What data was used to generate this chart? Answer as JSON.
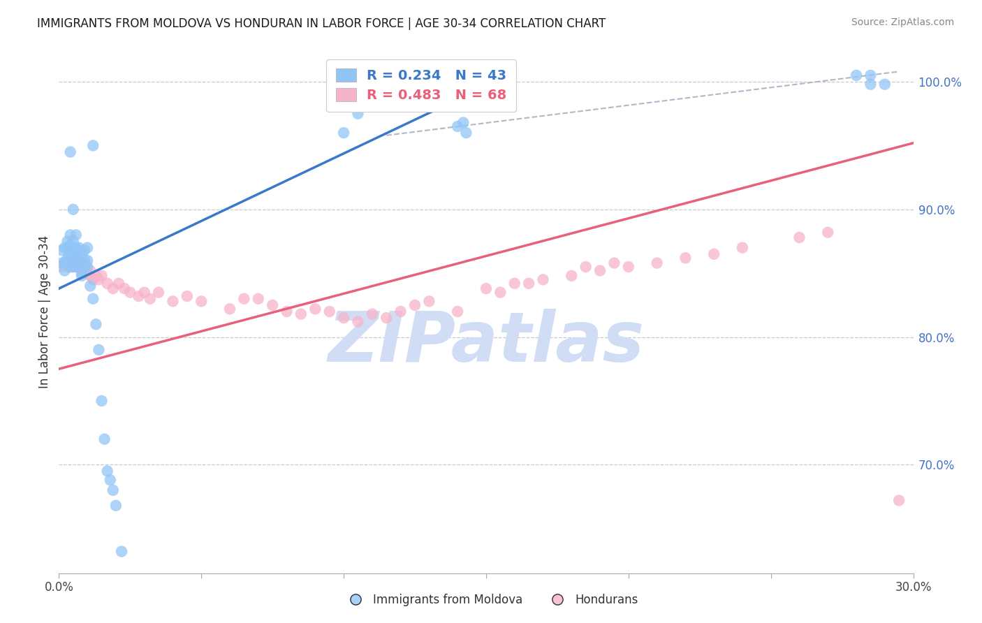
{
  "title": "IMMIGRANTS FROM MOLDOVA VS HONDURAN IN LABOR FORCE | AGE 30-34 CORRELATION CHART",
  "source_text": "Source: ZipAtlas.com",
  "ylabel": "In Labor Force | Age 30-34",
  "xlim": [
    0.0,
    0.3
  ],
  "ylim": [
    0.615,
    1.025
  ],
  "xtick_labels": [
    "0.0%",
    "",
    "",
    "",
    "",
    "",
    "30.0%"
  ],
  "xtick_vals": [
    0.0,
    0.05,
    0.1,
    0.15,
    0.2,
    0.25,
    0.3
  ],
  "right_ytick_labels": [
    "70.0%",
    "80.0%",
    "90.0%",
    "100.0%"
  ],
  "right_ytick_vals": [
    0.7,
    0.8,
    0.9,
    1.0
  ],
  "legend_r_blue": "R = 0.234",
  "legend_n_blue": "N = 43",
  "legend_r_pink": "R = 0.483",
  "legend_n_pink": "N = 68",
  "blue_color": "#92c5f7",
  "pink_color": "#f7b3c8",
  "blue_line_color": "#3a78c9",
  "pink_line_color": "#e8607a",
  "dashed_line_color": "#b0b8c8",
  "watermark_color": "#d0ddf5",
  "blue_line_x": [
    0.0,
    0.155
  ],
  "blue_line_y": [
    0.838,
    1.002
  ],
  "pink_line_x": [
    0.0,
    0.3
  ],
  "pink_line_y": [
    0.775,
    0.952
  ],
  "dashed_line_x": [
    0.115,
    0.295
  ],
  "dashed_line_y": [
    0.958,
    1.008
  ],
  "moldova_x": [
    0.001,
    0.001,
    0.002,
    0.002,
    0.003,
    0.003,
    0.003,
    0.003,
    0.004,
    0.004,
    0.004,
    0.004,
    0.004,
    0.005,
    0.005,
    0.005,
    0.005,
    0.005,
    0.005,
    0.006,
    0.006,
    0.006,
    0.006,
    0.006,
    0.007,
    0.007,
    0.008,
    0.008,
    0.008,
    0.009,
    0.009,
    0.01,
    0.01,
    0.012,
    0.1,
    0.105,
    0.14,
    0.142,
    0.143,
    0.28,
    0.285,
    0.285,
    0.29
  ],
  "moldova_y": [
    0.858,
    0.868,
    0.852,
    0.87,
    0.862,
    0.86,
    0.87,
    0.875,
    0.86,
    0.865,
    0.87,
    0.872,
    0.88,
    0.855,
    0.858,
    0.86,
    0.865,
    0.87,
    0.875,
    0.855,
    0.86,
    0.863,
    0.87,
    0.88,
    0.858,
    0.87,
    0.85,
    0.858,
    0.865,
    0.86,
    0.868,
    0.855,
    0.87,
    0.95,
    0.96,
    0.975,
    0.965,
    0.968,
    0.96,
    1.005,
    1.005,
    0.998,
    0.998
  ],
  "moldova_y_low": [
    0.858,
    0.86,
    0.855,
    0.945,
    0.9,
    0.858,
    0.862,
    0.86,
    0.858,
    0.848,
    0.855,
    0.86,
    0.84,
    0.83,
    0.81,
    0.79,
    0.75,
    0.72,
    0.695,
    0.688,
    0.68,
    0.668,
    0.632
  ],
  "moldova_x_low": [
    0.002,
    0.003,
    0.004,
    0.004,
    0.005,
    0.006,
    0.006,
    0.007,
    0.007,
    0.008,
    0.009,
    0.01,
    0.011,
    0.012,
    0.013,
    0.014,
    0.015,
    0.016,
    0.017,
    0.018,
    0.019,
    0.02,
    0.022
  ],
  "honduran_x": [
    0.001,
    0.002,
    0.003,
    0.004,
    0.004,
    0.005,
    0.005,
    0.006,
    0.006,
    0.007,
    0.007,
    0.007,
    0.008,
    0.008,
    0.009,
    0.009,
    0.01,
    0.011,
    0.011,
    0.012,
    0.013,
    0.014,
    0.015,
    0.017,
    0.019,
    0.021,
    0.023,
    0.025,
    0.028,
    0.03,
    0.032,
    0.035,
    0.04,
    0.045,
    0.05,
    0.06,
    0.065,
    0.07,
    0.075,
    0.08,
    0.085,
    0.09,
    0.095,
    0.1,
    0.105,
    0.11,
    0.115,
    0.12,
    0.125,
    0.13,
    0.14,
    0.15,
    0.155,
    0.16,
    0.165,
    0.17,
    0.18,
    0.185,
    0.19,
    0.195,
    0.2,
    0.21,
    0.22,
    0.23,
    0.24,
    0.26,
    0.27,
    0.295
  ],
  "honduran_y": [
    0.855,
    0.858,
    0.855,
    0.855,
    0.86,
    0.855,
    0.858,
    0.855,
    0.86,
    0.855,
    0.858,
    0.862,
    0.855,
    0.858,
    0.852,
    0.856,
    0.85,
    0.848,
    0.852,
    0.845,
    0.848,
    0.845,
    0.848,
    0.842,
    0.838,
    0.842,
    0.838,
    0.835,
    0.832,
    0.835,
    0.83,
    0.835,
    0.828,
    0.832,
    0.828,
    0.822,
    0.83,
    0.83,
    0.825,
    0.82,
    0.818,
    0.822,
    0.82,
    0.815,
    0.812,
    0.818,
    0.815,
    0.82,
    0.825,
    0.828,
    0.82,
    0.838,
    0.835,
    0.842,
    0.842,
    0.845,
    0.848,
    0.855,
    0.852,
    0.858,
    0.855,
    0.858,
    0.862,
    0.865,
    0.87,
    0.878,
    0.882,
    0.672
  ]
}
